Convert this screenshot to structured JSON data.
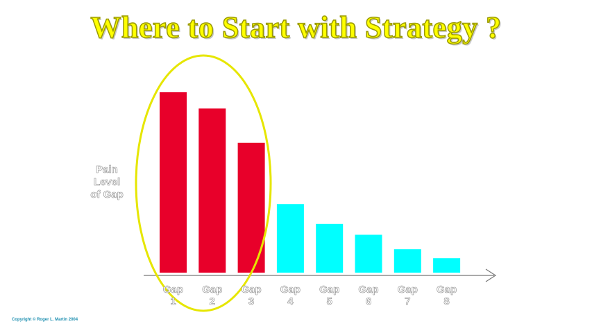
{
  "title": "Where to Start with Strategy ?",
  "copyright": "Copyright © Roger L. Martin 2004",
  "colors": {
    "title_fill": "#ffff00",
    "highlighted_bar": "#e8002a",
    "other_bar": "#00ffff",
    "highlight_ellipse": "#e6e600",
    "axis": "#777777"
  },
  "chart_data": {
    "type": "bar",
    "ylabel_lines": [
      "Pain",
      "Level",
      "of Gap"
    ],
    "xlabel": "",
    "categories": [
      [
        "Gap",
        "1"
      ],
      [
        "Gap",
        "2"
      ],
      [
        "Gap",
        "3"
      ],
      [
        "Gap",
        "4"
      ],
      [
        "Gap",
        "5"
      ],
      [
        "Gap",
        "6"
      ],
      [
        "Gap",
        "7"
      ],
      [
        "Gap",
        "8"
      ]
    ],
    "values": [
      100,
      91,
      72,
      38,
      27,
      21,
      13,
      8
    ],
    "ylim": [
      0,
      100
    ],
    "highlighted": [
      true,
      true,
      true,
      false,
      false,
      false,
      false,
      false
    ],
    "grid": false,
    "legend": "none",
    "y_tick_labels": false,
    "x_axis_arrow": true
  }
}
